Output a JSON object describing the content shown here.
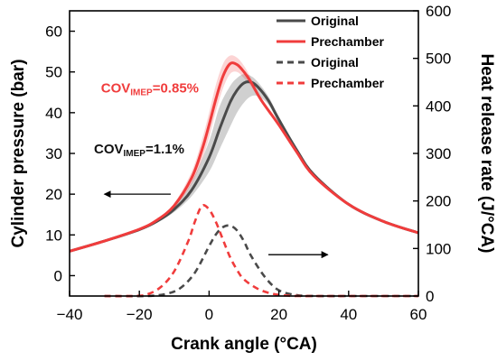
{
  "chart_data": {
    "type": "line",
    "xlabel": "Crank angle (°CA)",
    "ylabel": "Cylinder pressure (bar)",
    "ylabel_right": "Heat release rate (J/°CA)",
    "xlim": [
      -40,
      60
    ],
    "ylim": [
      -5,
      65
    ],
    "ylim_right": [
      0,
      600
    ],
    "x_ticks": [
      -40,
      -20,
      0,
      20,
      40,
      60
    ],
    "x_tick_labels": [
      "−40",
      "−20",
      "0",
      "20",
      "40",
      "60"
    ],
    "y_ticks": [
      0,
      10,
      20,
      30,
      40,
      50,
      60
    ],
    "y_ticks_right": [
      0,
      100,
      200,
      300,
      400,
      500,
      600
    ],
    "legend": {
      "position": "top-right",
      "entries": [
        {
          "label": "Original",
          "color": "#4a4a4a",
          "dash": false
        },
        {
          "label": "Prechamber",
          "color": "#f03c3c",
          "dash": false
        },
        {
          "label": "Original",
          "color": "#4a4a4a",
          "dash": true
        },
        {
          "label": "Prechamber",
          "color": "#f03c3c",
          "dash": true
        }
      ]
    },
    "annotations": [
      {
        "main": "COV",
        "sub": "IMEP",
        "value": "=0.85%",
        "color": "#f03c3c",
        "x": -31,
        "y": 45
      },
      {
        "main": "COV",
        "sub": "IMEP",
        "value": "=1.1%",
        "color": "#111111",
        "x": -33,
        "y": 30
      }
    ],
    "arrows": [
      {
        "direction": "left",
        "y": 20,
        "x_from": -11,
        "x_to": -30
      },
      {
        "direction": "right",
        "y": 87,
        "axis": "right",
        "x_from": 17,
        "x_to": 34
      }
    ],
    "series": [
      {
        "name": "Original",
        "axis": "left",
        "color": "#4a4a4a",
        "dash": false,
        "x": [
          -40,
          -30,
          -20,
          -15,
          -10,
          -5,
          0,
          3,
          6,
          8,
          10,
          12,
          14,
          17,
          20,
          25,
          30,
          40,
          50,
          60
        ],
        "y": [
          6,
          8.5,
          11.3,
          13.3,
          16.3,
          21,
          29,
          36,
          42.5,
          45.5,
          47.3,
          47.5,
          46.3,
          43,
          38.3,
          31,
          24.8,
          17.5,
          13.3,
          10.5
        ],
        "band_upper": [
          6,
          8.5,
          11.4,
          13.6,
          17,
          23,
          33,
          41.5,
          46.5,
          48.5,
          49.5,
          49,
          47.5,
          44,
          39,
          31.5,
          25,
          17.5,
          13.3,
          10.5
        ],
        "band_lower": [
          6,
          8.5,
          11.2,
          13,
          15.6,
          19.5,
          25.5,
          31,
          36.5,
          40,
          42.5,
          44,
          44,
          42,
          37.5,
          30.5,
          24.5,
          17.5,
          13.3,
          10.5
        ]
      },
      {
        "name": "Prechamber",
        "axis": "left",
        "color": "#f03c3c",
        "dash": false,
        "x": [
          -40,
          -30,
          -20,
          -15,
          -10,
          -5,
          -2,
          0,
          2,
          4,
          6,
          8,
          10,
          12,
          15,
          20,
          25,
          30,
          40,
          50,
          60
        ],
        "y": [
          6,
          8.5,
          11.4,
          13.6,
          17.2,
          24,
          31,
          37,
          43.5,
          49,
          52,
          51.8,
          50,
          47.5,
          43,
          37,
          30.5,
          24.5,
          17.5,
          13.3,
          10.5
        ],
        "band_upper": [
          6,
          8.5,
          11.5,
          13.8,
          17.8,
          25.5,
          33.5,
          40,
          47,
          52,
          54,
          53.5,
          51.5,
          48.5,
          43.5,
          37.2,
          30.6,
          24.5,
          17.5,
          13.3,
          10.5
        ],
        "band_lower": [
          6,
          8.5,
          11.3,
          13.4,
          16.7,
          22.5,
          28.5,
          34,
          40.5,
          46,
          49.5,
          50,
          48.5,
          46.5,
          42.5,
          36.8,
          30.4,
          24.5,
          17.5,
          13.3,
          10.5
        ]
      },
      {
        "name": "Original",
        "axis": "right",
        "color": "#4a4a4a",
        "dash": true,
        "x": [
          -30,
          -18,
          -12,
          -8,
          -4,
          0,
          2,
          4,
          6,
          8,
          10,
          12,
          16,
          20,
          25,
          30,
          40,
          50,
          60
        ],
        "y": [
          0,
          0,
          5,
          18,
          50,
          105,
          130,
          145,
          148,
          138,
          115,
          85,
          40,
          12,
          2,
          0,
          0,
          0,
          0
        ]
      },
      {
        "name": "Prechamber",
        "axis": "right",
        "color": "#f03c3c",
        "dash": true,
        "x": [
          -30,
          -22,
          -18,
          -14,
          -10,
          -6,
          -4,
          -2,
          0,
          2,
          4,
          6,
          8,
          10,
          14,
          18,
          22,
          26,
          30,
          40,
          50,
          60
        ],
        "y": [
          0,
          0,
          3,
          18,
          52,
          115,
          158,
          190,
          182,
          155,
          118,
          82,
          55,
          35,
          15,
          5,
          1,
          0,
          0,
          0,
          0,
          0
        ]
      }
    ]
  }
}
